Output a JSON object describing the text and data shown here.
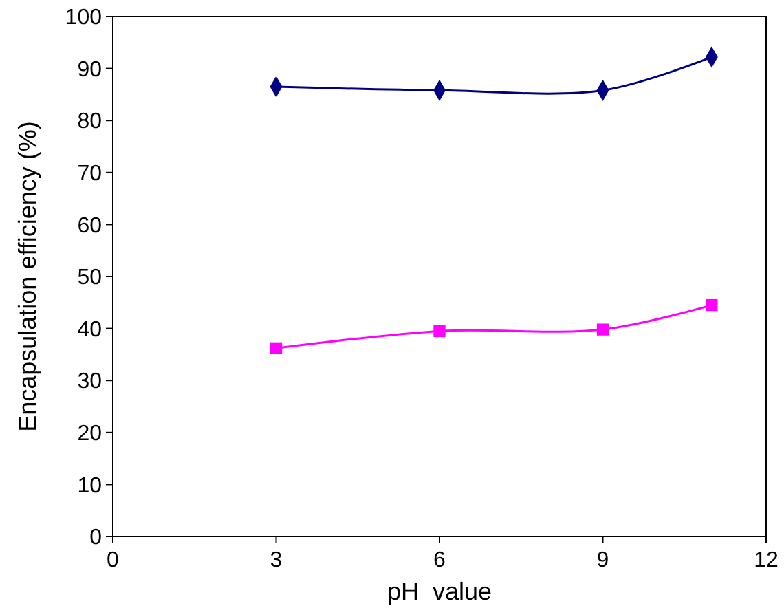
{
  "chart_data": {
    "type": "line",
    "xlabel": "pH  value",
    "ylabel": "Encapsulation efficiency (%)",
    "x": [
      3,
      6,
      9,
      11
    ],
    "xlim": [
      0,
      12
    ],
    "xticks": [
      0,
      3,
      6,
      9,
      12
    ],
    "ylim": [
      0,
      100
    ],
    "yticks": [
      0,
      10,
      20,
      30,
      40,
      50,
      60,
      70,
      80,
      90,
      100
    ],
    "grid": false,
    "series": [
      {
        "color": "#000080",
        "marker": "diamond",
        "values": [
          86.5,
          85.8,
          85.8,
          92.2
        ]
      },
      {
        "color": "#ff00ff",
        "marker": "square",
        "values": [
          36.2,
          39.5,
          39.8,
          44.5
        ]
      }
    ]
  }
}
